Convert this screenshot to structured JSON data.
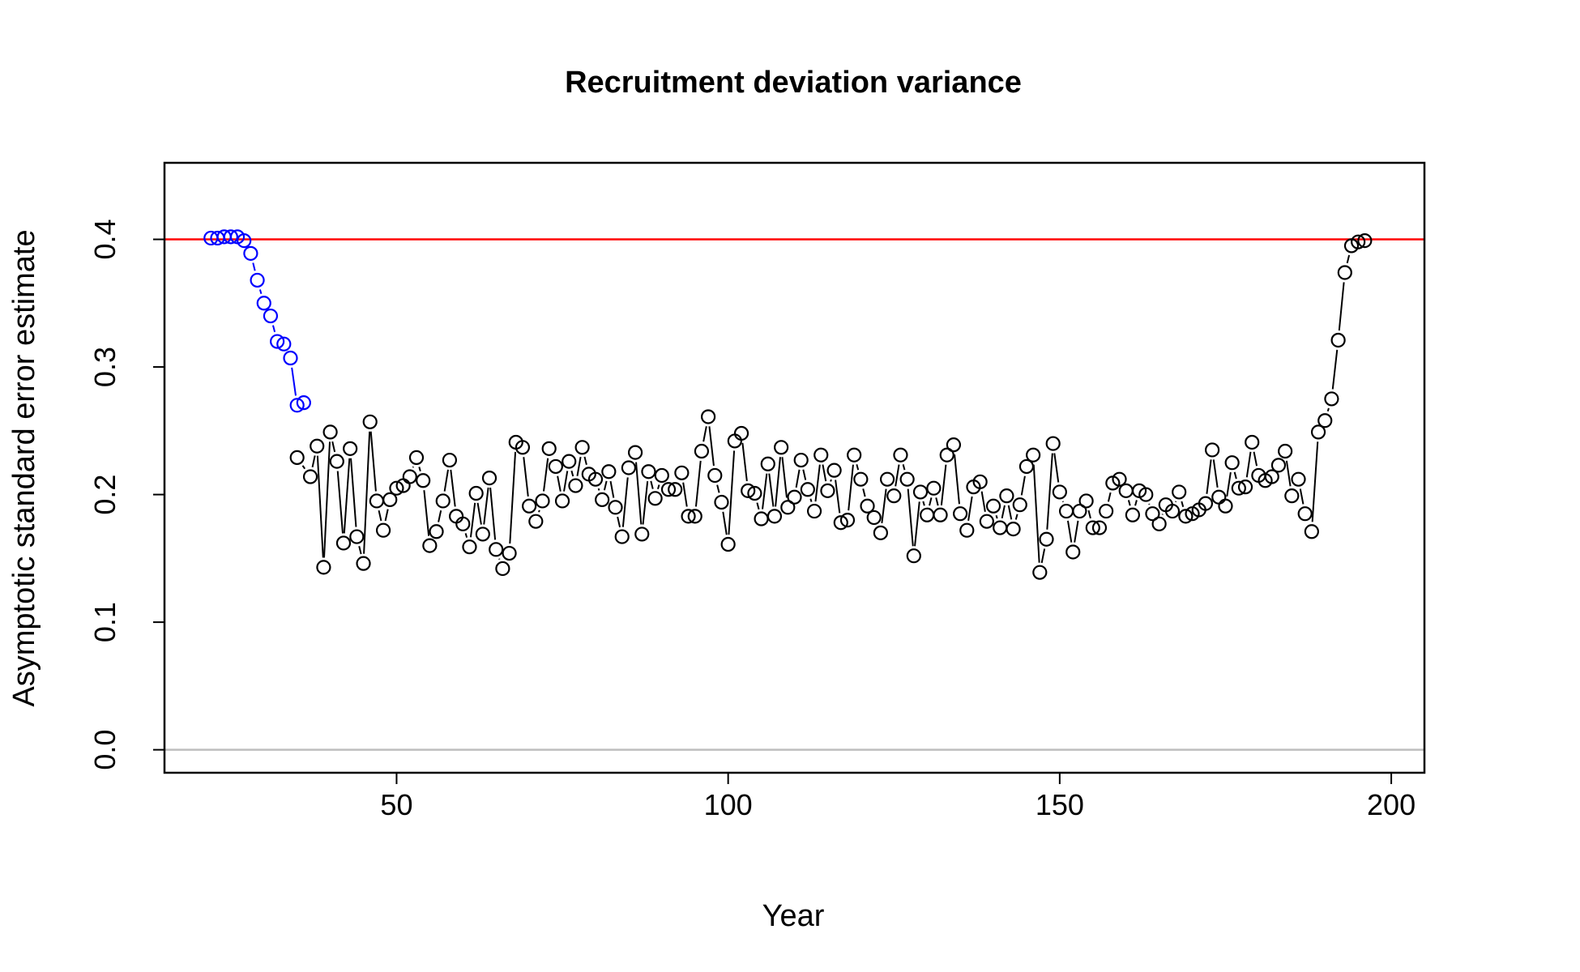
{
  "chart_data": {
    "type": "scatter",
    "title": "Recruitment deviation variance",
    "xlabel": "Year",
    "ylabel": "Asymptotic standard error estimate",
    "xlim": [
      15,
      205
    ],
    "ylim": [
      -0.018,
      0.46
    ],
    "x_ticks": [
      50,
      100,
      150,
      200
    ],
    "x_tick_labels": [
      "50",
      "100",
      "150",
      "200"
    ],
    "y_ticks": [
      0.0,
      0.1,
      0.2,
      0.3,
      0.4
    ],
    "y_tick_labels": [
      "0.0",
      "0.1",
      "0.2",
      "0.3",
      "0.4"
    ],
    "grid": false,
    "legend": "none",
    "reference_lines": [
      {
        "y": 0.4,
        "color": "#ff0000"
      },
      {
        "y": 0.0,
        "color": "#bebebe"
      }
    ],
    "series": [
      {
        "color": "#0000ff",
        "x": [
          22,
          23,
          24,
          25,
          26,
          27,
          28,
          29,
          30,
          31,
          32,
          33,
          34,
          35,
          36
        ],
        "y": [
          0.401,
          0.401,
          0.402,
          0.402,
          0.402,
          0.399,
          0.389,
          0.368,
          0.35,
          0.34,
          0.32,
          0.318,
          0.307,
          0.27,
          0.272
        ]
      },
      {
        "color": "#000000",
        "x": [
          35,
          37,
          38,
          39,
          40,
          41,
          42,
          43,
          44,
          45,
          46,
          47,
          48,
          49,
          50,
          51,
          52,
          53,
          54,
          55,
          56,
          57,
          58,
          59,
          60,
          61,
          62,
          63,
          64,
          65,
          66,
          67,
          68,
          69,
          70,
          71,
          72,
          73,
          74,
          75,
          76,
          77,
          78,
          79,
          80,
          81,
          82,
          83,
          84,
          85,
          86,
          87,
          88,
          89,
          90,
          91,
          92,
          93,
          94,
          95,
          96,
          97,
          98,
          99,
          100,
          101,
          102,
          103,
          104,
          105,
          106,
          107,
          108,
          109,
          110,
          111,
          112,
          113,
          114,
          115,
          116,
          117,
          118,
          119,
          120,
          121,
          122,
          123,
          124,
          125,
          126,
          127,
          128,
          129,
          130,
          131,
          132,
          133,
          134,
          135,
          136,
          137,
          138,
          139,
          140,
          141,
          142,
          143,
          144,
          145,
          146,
          147,
          148,
          149,
          150,
          151,
          152,
          153,
          154,
          155,
          156,
          157,
          158,
          159,
          160,
          161,
          162,
          163,
          164,
          165,
          166,
          167,
          168,
          169,
          170,
          171,
          172,
          173,
          174,
          175,
          176,
          177,
          178,
          179,
          180,
          181,
          182,
          183,
          184,
          185,
          186,
          187,
          188,
          189,
          190,
          191,
          192,
          193,
          194,
          195,
          196
        ],
        "y": [
          0.229,
          0.214,
          0.238,
          0.143,
          0.249,
          0.226,
          0.162,
          0.236,
          0.167,
          0.146,
          0.257,
          0.195,
          0.172,
          0.196,
          0.205,
          0.207,
          0.214,
          0.229,
          0.211,
          0.16,
          0.171,
          0.195,
          0.227,
          0.183,
          0.177,
          0.159,
          0.201,
          0.169,
          0.213,
          0.157,
          0.142,
          0.154,
          0.241,
          0.237,
          0.191,
          0.179,
          0.195,
          0.236,
          0.222,
          0.195,
          0.226,
          0.207,
          0.237,
          0.216,
          0.212,
          0.196,
          0.218,
          0.19,
          0.167,
          0.221,
          0.233,
          0.169,
          0.218,
          0.197,
          0.215,
          0.204,
          0.204,
          0.217,
          0.183,
          0.183,
          0.234,
          0.261,
          0.215,
          0.194,
          0.161,
          0.242,
          0.248,
          0.203,
          0.201,
          0.181,
          0.224,
          0.183,
          0.237,
          0.19,
          0.198,
          0.227,
          0.204,
          0.187,
          0.231,
          0.203,
          0.219,
          0.178,
          0.18,
          0.231,
          0.212,
          0.191,
          0.182,
          0.17,
          0.212,
          0.199,
          0.231,
          0.212,
          0.152,
          0.202,
          0.184,
          0.205,
          0.184,
          0.231,
          0.239,
          0.185,
          0.172,
          0.206,
          0.21,
          0.179,
          0.191,
          0.174,
          0.199,
          0.173,
          0.192,
          0.222,
          0.231,
          0.139,
          0.165,
          0.24,
          0.202,
          0.187,
          0.155,
          0.187,
          0.195,
          0.174,
          0.174,
          0.187,
          0.209,
          0.212,
          0.203,
          0.184,
          0.203,
          0.2,
          0.185,
          0.177,
          0.192,
          0.187,
          0.202,
          0.183,
          0.185,
          0.188,
          0.193,
          0.235,
          0.198,
          0.191,
          0.225,
          0.205,
          0.206,
          0.241,
          0.215,
          0.211,
          0.214,
          0.223,
          0.234,
          0.199,
          0.212,
          0.185,
          0.171,
          0.249,
          0.258,
          0.275,
          0.321,
          0.374,
          0.395,
          0.398,
          0.399
        ]
      }
    ]
  }
}
